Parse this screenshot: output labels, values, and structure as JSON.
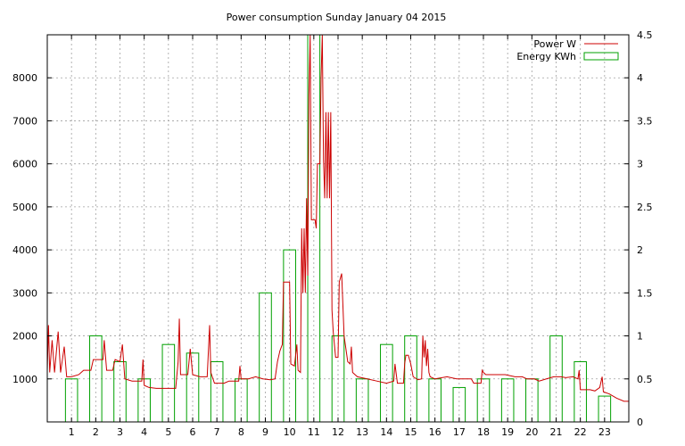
{
  "chart_data": {
    "type": "line",
    "title": "Power consumption Sunday January 04 2015",
    "xlabel": "",
    "ylabel": "",
    "y2label": "",
    "grid": true,
    "legend_position": "top-right",
    "xlim": [
      0,
      24
    ],
    "ylim": [
      0,
      9000
    ],
    "y2lim": [
      0,
      4.5
    ],
    "xticks": [
      "1",
      "2",
      "3",
      "4",
      "5",
      "6",
      "7",
      "8",
      "9",
      "10",
      "11",
      "12",
      "13",
      "14",
      "15",
      "16",
      "17",
      "18",
      "19",
      "20",
      "21",
      "22",
      "23"
    ],
    "yticks": [
      "1000",
      "2000",
      "3000",
      "4000",
      "5000",
      "6000",
      "7000",
      "8000"
    ],
    "y2ticks": [
      "0",
      "0.5",
      "1",
      "1.5",
      "2",
      "2.5",
      "3",
      "3.5",
      "4",
      "4.5"
    ],
    "colors": {
      "power": "#cc0000",
      "energy": "#00a000",
      "grid": "#a0a0a0"
    },
    "series": [
      {
        "name": "Power W",
        "axis": "left",
        "style": "line",
        "points": [
          [
            0.0,
            1200
          ],
          [
            0.05,
            2250
          ],
          [
            0.1,
            1150
          ],
          [
            0.2,
            1900
          ],
          [
            0.3,
            1150
          ],
          [
            0.45,
            2100
          ],
          [
            0.55,
            1150
          ],
          [
            0.7,
            1750
          ],
          [
            0.8,
            1050
          ],
          [
            1.0,
            1050
          ],
          [
            1.3,
            1100
          ],
          [
            1.5,
            1200
          ],
          [
            1.8,
            1200
          ],
          [
            1.9,
            1450
          ],
          [
            2.3,
            1450
          ],
          [
            2.35,
            1900
          ],
          [
            2.45,
            1200
          ],
          [
            2.7,
            1200
          ],
          [
            2.8,
            1450
          ],
          [
            3.0,
            1400
          ],
          [
            3.1,
            1800
          ],
          [
            3.2,
            1000
          ],
          [
            3.5,
            950
          ],
          [
            3.9,
            950
          ],
          [
            3.95,
            1450
          ],
          [
            4.0,
            850
          ],
          [
            4.2,
            800
          ],
          [
            4.5,
            780
          ],
          [
            5.0,
            780
          ],
          [
            5.3,
            780
          ],
          [
            5.4,
            1400
          ],
          [
            5.45,
            2400
          ],
          [
            5.5,
            1100
          ],
          [
            5.8,
            1100
          ],
          [
            5.9,
            1700
          ],
          [
            6.0,
            1100
          ],
          [
            6.3,
            1050
          ],
          [
            6.6,
            1050
          ],
          [
            6.7,
            2250
          ],
          [
            6.75,
            1150
          ],
          [
            6.9,
            900
          ],
          [
            7.3,
            900
          ],
          [
            7.5,
            950
          ],
          [
            7.9,
            950
          ],
          [
            7.95,
            1300
          ],
          [
            8.0,
            1000
          ],
          [
            8.3,
            1000
          ],
          [
            8.6,
            1050
          ],
          [
            8.9,
            1000
          ],
          [
            9.2,
            980
          ],
          [
            9.4,
            1000
          ],
          [
            9.5,
            1400
          ],
          [
            9.6,
            1650
          ],
          [
            9.7,
            1800
          ],
          [
            9.75,
            3250
          ],
          [
            10.0,
            3250
          ],
          [
            10.05,
            1350
          ],
          [
            10.2,
            1300
          ],
          [
            10.3,
            1800
          ],
          [
            10.35,
            1200
          ],
          [
            10.45,
            1150
          ],
          [
            10.5,
            4500
          ],
          [
            10.55,
            3000
          ],
          [
            10.6,
            4500
          ],
          [
            10.65,
            3000
          ],
          [
            10.7,
            5200
          ],
          [
            10.75,
            3400
          ],
          [
            10.8,
            7600
          ],
          [
            10.85,
            9000
          ],
          [
            10.9,
            4700
          ],
          [
            11.05,
            4700
          ],
          [
            11.1,
            4500
          ],
          [
            11.15,
            6000
          ],
          [
            11.25,
            6000
          ],
          [
            11.3,
            8000
          ],
          [
            11.35,
            9000
          ],
          [
            11.4,
            6100
          ],
          [
            11.45,
            5200
          ],
          [
            11.5,
            7200
          ],
          [
            11.55,
            5200
          ],
          [
            11.6,
            7200
          ],
          [
            11.65,
            5200
          ],
          [
            11.7,
            7200
          ],
          [
            11.75,
            2600
          ],
          [
            11.8,
            2100
          ],
          [
            11.9,
            1500
          ],
          [
            12.0,
            1500
          ],
          [
            12.05,
            3250
          ],
          [
            12.15,
            3450
          ],
          [
            12.25,
            2000
          ],
          [
            12.4,
            1400
          ],
          [
            12.5,
            1350
          ],
          [
            12.55,
            1750
          ],
          [
            12.6,
            1150
          ],
          [
            12.8,
            1050
          ],
          [
            13.2,
            1000
          ],
          [
            13.6,
            950
          ],
          [
            14.0,
            900
          ],
          [
            14.3,
            950
          ],
          [
            14.35,
            1350
          ],
          [
            14.45,
            900
          ],
          [
            14.7,
            900
          ],
          [
            14.75,
            1350
          ],
          [
            14.8,
            1550
          ],
          [
            14.9,
            1550
          ],
          [
            15.0,
            1350
          ],
          [
            15.1,
            1050
          ],
          [
            15.3,
            980
          ],
          [
            15.45,
            1000
          ],
          [
            15.5,
            2000
          ],
          [
            15.55,
            1500
          ],
          [
            15.6,
            1900
          ],
          [
            15.65,
            1300
          ],
          [
            15.7,
            1700
          ],
          [
            15.75,
            1150
          ],
          [
            15.8,
            1050
          ],
          [
            16.0,
            1000
          ],
          [
            16.5,
            1050
          ],
          [
            16.9,
            1000
          ],
          [
            17.5,
            1000
          ],
          [
            17.6,
            900
          ],
          [
            17.9,
            900
          ],
          [
            17.95,
            1200
          ],
          [
            18.0,
            1150
          ],
          [
            18.1,
            1100
          ],
          [
            18.5,
            1100
          ],
          [
            18.9,
            1100
          ],
          [
            19.3,
            1050
          ],
          [
            19.6,
            1050
          ],
          [
            19.8,
            1000
          ],
          [
            20.1,
            1000
          ],
          [
            20.3,
            950
          ],
          [
            20.6,
            1000
          ],
          [
            20.9,
            1050
          ],
          [
            21.2,
            1050
          ],
          [
            21.4,
            1030
          ],
          [
            21.7,
            1050
          ],
          [
            21.9,
            1000
          ],
          [
            21.95,
            1200
          ],
          [
            22.0,
            750
          ],
          [
            22.4,
            750
          ],
          [
            22.6,
            720
          ],
          [
            22.8,
            800
          ],
          [
            22.9,
            1050
          ],
          [
            22.95,
            700
          ],
          [
            23.2,
            650
          ],
          [
            23.5,
            550
          ],
          [
            23.8,
            480
          ],
          [
            24.0,
            480
          ]
        ]
      },
      {
        "name": "Energy KWh",
        "axis": "right",
        "style": "boxes",
        "x": [
          1,
          2,
          3,
          4,
          5,
          6,
          7,
          8,
          9,
          10,
          11,
          12,
          13,
          14,
          15,
          16,
          17,
          18,
          19,
          20,
          21,
          22,
          23
        ],
        "values": [
          0.5,
          1.0,
          0.7,
          0.5,
          0.9,
          0.8,
          0.7,
          0.5,
          1.5,
          2.0,
          4.5,
          1.0,
          0.5,
          0.9,
          1.0,
          0.5,
          0.4,
          0.5,
          0.5,
          0.5,
          1.0,
          0.7,
          0.3
        ]
      }
    ]
  }
}
